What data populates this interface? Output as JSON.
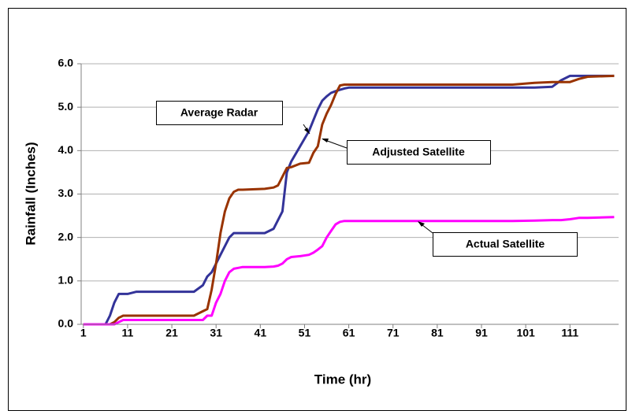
{
  "chart_data": {
    "type": "line",
    "x_label": "Time (hr)",
    "y_label": "Rainfall  (Inches)",
    "xlim": [
      0.5,
      122
    ],
    "xticks": [
      1,
      11,
      21,
      31,
      41,
      51,
      61,
      71,
      81,
      91,
      101,
      111
    ],
    "ylim": [
      0,
      6
    ],
    "yticks": [
      {
        "value": 0,
        "label": "0.0"
      },
      {
        "value": 1,
        "label": "1.0"
      },
      {
        "value": 2,
        "label": "2.0"
      },
      {
        "value": 3,
        "label": "3.0"
      },
      {
        "value": 4,
        "label": "4.0"
      },
      {
        "value": 5,
        "label": "5.0"
      },
      {
        "value": 6,
        "label": "6.0"
      }
    ],
    "grid": true,
    "x": [
      1,
      6,
      7,
      8,
      9,
      10,
      11,
      13,
      26,
      28,
      29,
      30,
      31,
      32,
      33,
      34,
      35,
      36,
      37,
      42,
      44,
      45,
      46,
      47,
      48,
      50,
      52,
      53,
      54,
      55,
      56,
      57,
      58,
      59,
      60,
      61,
      98,
      103,
      107,
      109,
      111,
      113,
      115,
      121
    ],
    "series": [
      {
        "name": "Average Radar",
        "color": "#333399",
        "values": [
          0,
          0,
          0.2,
          0.5,
          0.7,
          0.7,
          0.7,
          0.75,
          0.75,
          0.9,
          1.1,
          1.2,
          1.4,
          1.6,
          1.8,
          2.0,
          2.1,
          2.1,
          2.1,
          2.1,
          2.2,
          2.4,
          2.6,
          3.5,
          3.75,
          4.1,
          4.45,
          4.7,
          4.95,
          5.15,
          5.25,
          5.33,
          5.37,
          5.4,
          5.43,
          5.45,
          5.45,
          5.45,
          5.47,
          5.62,
          5.72,
          5.72,
          5.72,
          5.72
        ]
      },
      {
        "name": "Adjusted Satellite",
        "color": "#993300",
        "values": [
          0,
          0,
          0,
          0.05,
          0.15,
          0.2,
          0.2,
          0.2,
          0.2,
          0.3,
          0.35,
          0.8,
          1.4,
          2.1,
          2.6,
          2.9,
          3.05,
          3.1,
          3.1,
          3.12,
          3.15,
          3.2,
          3.4,
          3.6,
          3.62,
          3.7,
          3.72,
          3.95,
          4.1,
          4.6,
          4.85,
          5.05,
          5.3,
          5.5,
          5.52,
          5.52,
          5.52,
          5.56,
          5.58,
          5.58,
          5.58,
          5.65,
          5.7,
          5.72
        ]
      },
      {
        "name": "Actual Satellite",
        "color": "#ff00ff",
        "values": [
          0,
          0,
          0,
          0,
          0.05,
          0.1,
          0.1,
          0.1,
          0.1,
          0.1,
          0.2,
          0.2,
          0.5,
          0.7,
          1.0,
          1.2,
          1.28,
          1.3,
          1.32,
          1.32,
          1.33,
          1.35,
          1.4,
          1.5,
          1.55,
          1.57,
          1.6,
          1.65,
          1.72,
          1.8,
          2.0,
          2.15,
          2.3,
          2.36,
          2.38,
          2.38,
          2.38,
          2.39,
          2.4,
          2.4,
          2.42,
          2.45,
          2.45,
          2.47
        ]
      }
    ]
  }
}
